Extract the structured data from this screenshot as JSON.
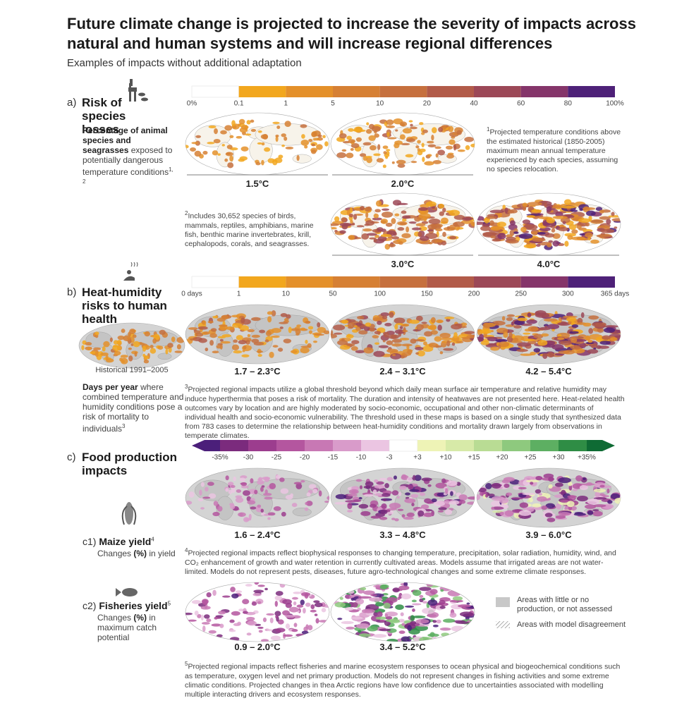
{
  "header": {
    "title": "Future climate change is projected to increase the severity of impacts across natural and human systems and will increase regional differences",
    "subtitle": "Examples of impacts without additional adaptation"
  },
  "species": {
    "label": "a)",
    "title": "Risk of species losses",
    "desc_bold": "Percentage of animal species and seagrasses",
    "desc": " exposed to potentially dangerous temperature conditions",
    "desc_note": "1, 2",
    "scale": {
      "labels": [
        "0%",
        "0.1",
        "1",
        "5",
        "10",
        "20",
        "40",
        "60",
        "80",
        "100%"
      ],
      "colors": [
        "#ffffff",
        "#f2a71e",
        "#e4902a",
        "#d68034",
        "#c6703e",
        "#b25b49",
        "#9c4857",
        "#85356a",
        "#4e2178"
      ]
    },
    "maps": [
      "1.5°C",
      "2.0°C",
      "3.0°C",
      "4.0°C"
    ],
    "footnotes": [
      {
        "mark": "1",
        "text": "Projected temperature conditions above the estimated historical (1850-2005) maximum mean annual temperature experienced by each species, assuming no species relocation."
      },
      {
        "mark": "2",
        "text": "Includes 30,652 species of birds, mammals, reptiles, amphibians, marine fish, benthic marine invertebrates, krill, cephalopods, corals, and seagrasses."
      }
    ]
  },
  "health": {
    "label": "b)",
    "title": "Heat-humidity risks to human health",
    "desc_bold": "Days per year",
    "desc": " where combined temperature and humidity conditions pose a risk of mortality to individuals",
    "desc_note": "3",
    "scale": {
      "labels": [
        "0 days",
        "1",
        "10",
        "50",
        "100",
        "150",
        "200",
        "250",
        "300",
        "365 days"
      ],
      "colors": [
        "#ffffff",
        "#f2a71e",
        "#e4902a",
        "#d68034",
        "#c6703e",
        "#b25b49",
        "#9c4857",
        "#85356a",
        "#4e2178"
      ]
    },
    "historical": "Historical 1991–2005",
    "maps": [
      "1.7 – 2.3°C",
      "2.4 – 3.1°C",
      "4.2 – 5.4°C"
    ],
    "footnote": {
      "mark": "3",
      "text": "Projected regional impacts utilize a global threshold beyond which daily mean surface air temperature and relative humidity may induce hyperthermia that poses a risk of mortality. The duration and intensity of heatwaves are not presented here. Heat-related health outcomes vary by location and are highly moderated by socio-economic, occupational and other non-climatic determinants of individual health and socio-economic vulnerability. The threshold used in these maps is based on a single study that synthesized data from 783 cases to determine the relationship between heat-humidity conditions and mortality drawn largely from observations in temperate climates."
    }
  },
  "food": {
    "label": "c)",
    "title": "Food production impacts",
    "scale": {
      "labels": [
        "-35%",
        "-30",
        "-25",
        "-20",
        "-15",
        "-10",
        "-3",
        "+3",
        "+10",
        "+15",
        "+20",
        "+25",
        "+30",
        "+35%"
      ],
      "colors": [
        "#4b1f7a",
        "#7b2b7d",
        "#9c3d8e",
        "#b4569f",
        "#c878b4",
        "#d99bca",
        "#ebc5e2",
        "#ffffff",
        "#eef3b6",
        "#d7eaa8",
        "#b9dc94",
        "#8ec97e",
        "#5daf62",
        "#2f8d45",
        "#0f6b34"
      ]
    },
    "maize": {
      "label": "c1)",
      "title": "Maize yield",
      "note": "4",
      "desc_pre": "Changes ",
      "desc_bold": "(%)",
      "desc": " in yield",
      "maps": [
        "1.6 – 2.4°C",
        "3.3 – 4.8°C",
        "3.9 – 6.0°C"
      ],
      "footnote": {
        "mark": "4",
        "text": "Projected regional impacts reflect biophysical responses to changing temperature, precipitation, solar radiation, humidity, wind, and CO₂ enhancement of growth and water retention in currently cultivated areas. Models assume that irrigated areas are not water-limited. Models do not represent pests, diseases, future agro-technological changes and some extreme climate responses."
      }
    },
    "fisheries": {
      "label": "c2)",
      "title": "Fisheries yield",
      "note": "5",
      "desc_pre": "Changes ",
      "desc_bold": "(%)",
      "desc": " in maximum catch potential",
      "maps": [
        "0.9 – 2.0°C",
        "3.4 – 5.2°C"
      ],
      "legend": [
        "Areas with little or no production, or not assessed",
        "Areas with model disagreement"
      ],
      "footnote": {
        "mark": "5",
        "text": "Projected regional impacts reflect fisheries and marine ecosystem responses to ocean physical and biogeochemical conditions such as temperature, oxygen level and net primary production. Models do not represent changes in fishing activities and some extreme climatic conditions. Projected changes in thea Arctic regions have low confidence due to uncertainties associated with modelling multiple interacting drivers and ecosystem responses."
      }
    }
  }
}
